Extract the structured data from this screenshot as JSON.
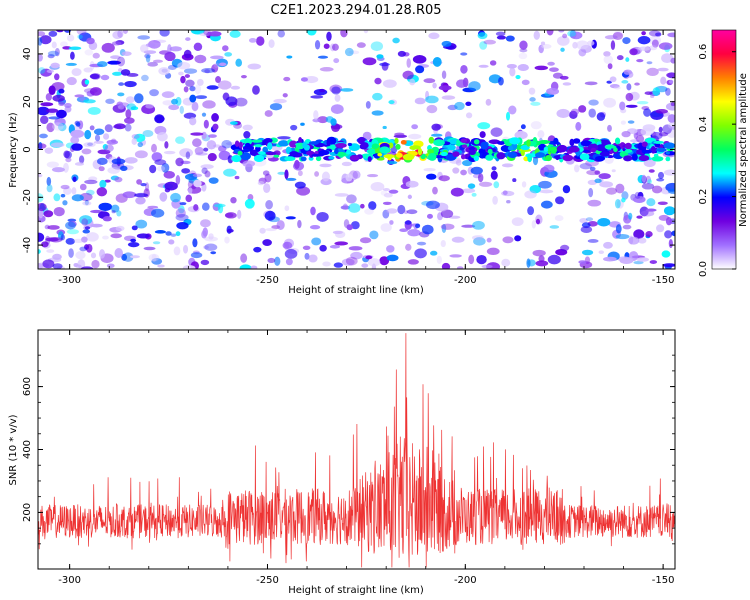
{
  "title": "C2E1.2023.294.01.28.R05",
  "chart_data": [
    {
      "type": "heatmap",
      "xlabel": "Height of straight line (km)",
      "ylabel": "Frequency (Hz)",
      "xlim": [
        -308,
        -147
      ],
      "ylim": [
        -50,
        50
      ],
      "xticks": [
        -300,
        -250,
        -200,
        -150
      ],
      "yticks": [
        -40,
        -20,
        0,
        20,
        40
      ],
      "x_tick_labels": [
        "-300",
        "-250",
        "-200",
        "-150"
      ],
      "y_tick_labels": [
        "-40",
        "-20",
        "0",
        "20",
        "40"
      ],
      "colorbar": {
        "label": "Normalized spectral amplitude",
        "range": [
          0,
          0.66
        ],
        "ticks": [
          0.0,
          0.2,
          0.4,
          0.6
        ],
        "tick_labels": [
          "0.0",
          "0.2",
          "0.4",
          "0.6"
        ],
        "colors": [
          "#ffffff",
          "#a070ff",
          "#7000e0",
          "#0000ff",
          "#00ffff",
          "#00ff60",
          "#80ff00",
          "#ffff00",
          "#ff8000",
          "#ff0040",
          "#ff00a0"
        ]
      },
      "feature": {
        "center_frequency": 0,
        "band_halfwidth": 4,
        "band_start_height": -258,
        "band_end_height": -148,
        "peak_heights": [
          -218,
          -212,
          -183
        ]
      },
      "grid": false
    },
    {
      "type": "line",
      "xlabel": "Height of straight line (km)",
      "ylabel": "SNR (10 * v/v)",
      "xlim": [
        -308,
        -147
      ],
      "ylim": [
        20,
        780
      ],
      "xticks": [
        -300,
        -250,
        -200,
        -150
      ],
      "yticks": [
        200,
        400,
        600
      ],
      "x_tick_labels": [
        "-300",
        "-250",
        "-200",
        "-150"
      ],
      "y_tick_labels": [
        "200",
        "400",
        "600"
      ],
      "series": [
        {
          "color": "#ee3333",
          "baseline": 150,
          "noise_amplitude": 90,
          "peak_x": -215,
          "peak_value": 770
        }
      ],
      "grid": false
    }
  ]
}
